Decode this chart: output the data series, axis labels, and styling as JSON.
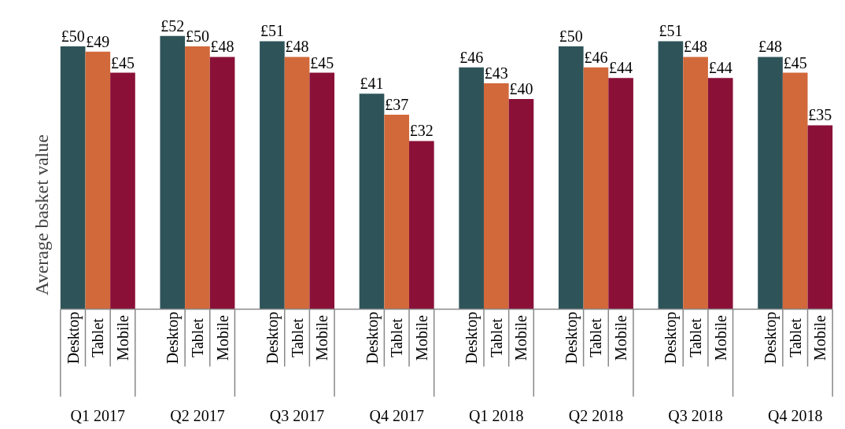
{
  "chart_data": {
    "type": "bar",
    "ylabel": "Average basket value",
    "categories": [
      "Q1 2017",
      "Q2 2017",
      "Q3 2017",
      "Q4 2017",
      "Q1 2018",
      "Q2 2018",
      "Q3 2018",
      "Q4 2018"
    ],
    "series": [
      {
        "name": "Desktop",
        "color": "#2e5459",
        "values": [
          50,
          52,
          51,
          41,
          46,
          50,
          51,
          48
        ],
        "value_labels": [
          "£50",
          "£52",
          "£51",
          "£41",
          "£46",
          "£50",
          "£51",
          "£48"
        ]
      },
      {
        "name": "Tablet",
        "color": "#d2693a",
        "values": [
          49,
          50,
          48,
          37,
          43,
          46,
          48,
          45
        ],
        "value_labels": [
          "£49",
          "£50",
          "£48",
          "£37",
          "£43",
          "£46",
          "£48",
          "£45"
        ]
      },
      {
        "name": "Mobile",
        "color": "#8a1038",
        "values": [
          45,
          48,
          45,
          32,
          40,
          44,
          44,
          35
        ],
        "value_labels": [
          "£45",
          "£48",
          "£45",
          "£32",
          "£40",
          "£44",
          "£44",
          "£35"
        ]
      }
    ],
    "grid": false
  }
}
